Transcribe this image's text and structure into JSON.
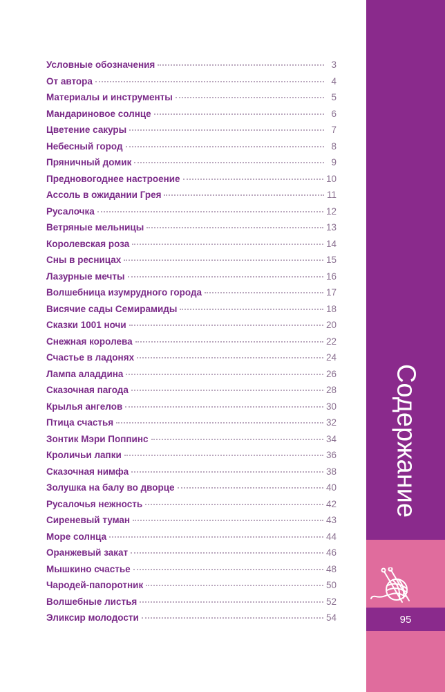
{
  "toc": [
    {
      "title": "Условные обозначения",
      "page": "3"
    },
    {
      "title": "От автора",
      "page": "4"
    },
    {
      "title": "Материалы и инструменты",
      "page": "5"
    },
    {
      "title": "Мандариновое солнце",
      "page": "6"
    },
    {
      "title": "Цветение сакуры",
      "page": "7"
    },
    {
      "title": "Небесный город",
      "page": "8"
    },
    {
      "title": "Пряничный домик",
      "page": "9"
    },
    {
      "title": "Предновогоднее настроение",
      "page": "10"
    },
    {
      "title": "Ассоль в ожидании Грея",
      "page": "11"
    },
    {
      "title": "Русалочка",
      "page": "12"
    },
    {
      "title": "Ветряные мельницы",
      "page": "13"
    },
    {
      "title": "Королевская роза",
      "page": "14"
    },
    {
      "title": "Сны в ресницах",
      "page": "15"
    },
    {
      "title": "Лазурные мечты",
      "page": "16"
    },
    {
      "title": "Волшебница изумрудного города",
      "page": "17"
    },
    {
      "title": "Висячие сады Семирамиды",
      "page": "18"
    },
    {
      "title": "Сказки 1001 ночи",
      "page": "20"
    },
    {
      "title": "Снежная королева",
      "page": "22"
    },
    {
      "title": "Счастье в ладонях",
      "page": "24"
    },
    {
      "title": "Лампа аладдина",
      "page": "26"
    },
    {
      "title": "Сказочная пагода",
      "page": "28"
    },
    {
      "title": "Крылья ангелов",
      "page": "30"
    },
    {
      "title": "Птица счастья",
      "page": "32"
    },
    {
      "title": "Зонтик Мэри Поппинс",
      "page": "34"
    },
    {
      "title": "Кроличьи лапки",
      "page": "36"
    },
    {
      "title": "Сказочная нимфа",
      "page": "38"
    },
    {
      "title": "Золушка на балу во дворце",
      "page": "40"
    },
    {
      "title": "Русалочья нежность",
      "page": "42"
    },
    {
      "title": "Сиреневый туман",
      "page": "43"
    },
    {
      "title": "Море солнца",
      "page": "44"
    },
    {
      "title": "Оранжевый закат",
      "page": "46"
    },
    {
      "title": "Мышкино счастье",
      "page": "48"
    },
    {
      "title": "Чародей-папоротник",
      "page": "50"
    },
    {
      "title": "Волшебные листья",
      "page": "52"
    },
    {
      "title": "Эликсир молодости",
      "page": "54"
    }
  ],
  "sidebar": {
    "heading": "Содержание",
    "page_number": "95",
    "icon": "yarn-ball-icon",
    "colors": {
      "purple": "#8a2a8c",
      "pink": "#e06c9d"
    }
  }
}
